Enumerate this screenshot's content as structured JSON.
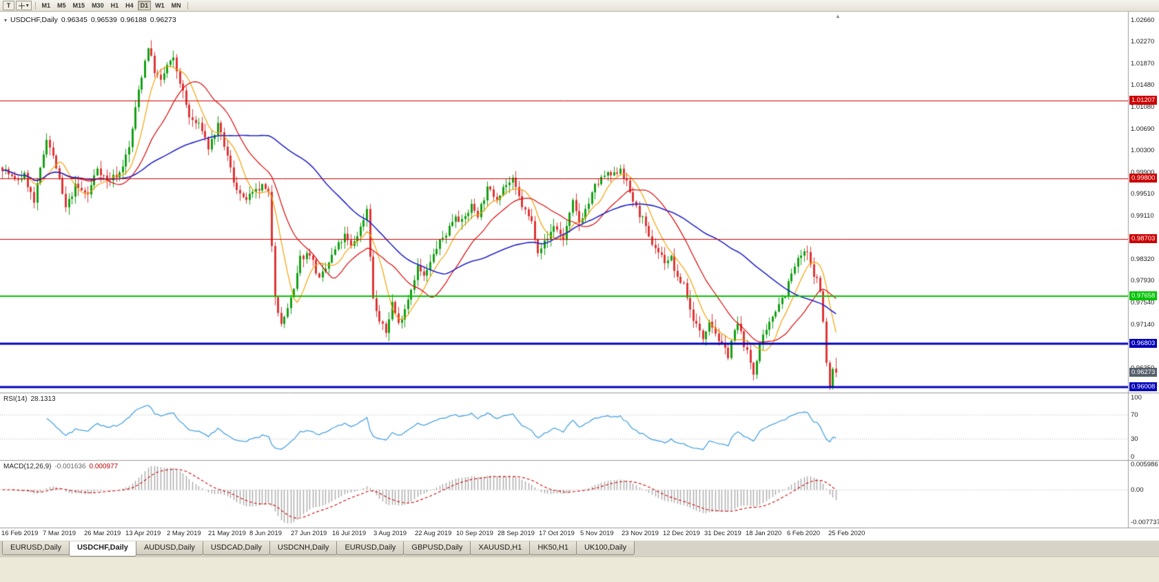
{
  "toolbar": {
    "text_tool": "T",
    "timeframes": [
      "M1",
      "M5",
      "M15",
      "M30",
      "H1",
      "H4",
      "D1",
      "W1",
      "MN"
    ],
    "active_timeframe": "D1"
  },
  "chart": {
    "title": {
      "symbol": "USDCHF,Daily",
      "open": "0.96345",
      "high": "0.96539",
      "low": "0.96188",
      "close": "0.96273"
    },
    "colors": {
      "background": "#ffffff",
      "up": "#12a112",
      "down": "#e03434",
      "axis_text": "#1c1c1c"
    },
    "price_axis": {
      "ticks": [
        "1.02660",
        "1.02270",
        "1.01870",
        "1.01480",
        "1.01080",
        "1.00690",
        "1.00300",
        "0.99900",
        "0.99510",
        "0.99110",
        "0.98720",
        "0.98320",
        "0.97930",
        "0.97540",
        "0.97140",
        "0.96750",
        "0.96350",
        "0.95960"
      ]
    },
    "current_price": {
      "value": 0.96273,
      "label": "0.96273",
      "color": "#56606c"
    }
  },
  "rsi": {
    "name": "RSI(14)",
    "value": "28.1313",
    "ticks": [
      "100",
      "70",
      "30",
      "0"
    ],
    "color": "#46a2e2",
    "level_values": [
      70,
      30
    ]
  },
  "macd": {
    "name": "MACD(12,26,9)",
    "value_main": "-0.001636",
    "value_signal": "0.000977",
    "ticks": [
      "0.005986",
      "0.00",
      "-0.007737"
    ],
    "hist_color": "#a8a8a8",
    "signal_color": "#d40000"
  },
  "date_axis": {
    "labels": [
      "16 Feb 2019",
      "7 Mar 2019",
      "26 Mar 2019",
      "13 Apr 2019",
      "2 May 2019",
      "21 May 2019",
      "8 Jun 2019",
      "27 Jun 2019",
      "16 Jul 2019",
      "3 Aug 2019",
      "22 Aug 2019",
      "10 Sep 2019",
      "28 Sep 2019",
      "17 Oct 2019",
      "5 Nov 2019",
      "23 Nov 2019",
      "12 Dec 2019",
      "31 Dec 2019",
      "18 Jan 2020",
      "6 Feb 2020",
      "25 Feb 2020"
    ]
  },
  "tabs": {
    "active_index": 1,
    "items": [
      "EURUSD,Daily",
      "USDCHF,Daily",
      "AUDUSD,Daily",
      "USDCAD,Daily",
      "USDCNH,Daily",
      "EURUSD,Daily",
      "GBPUSD,Daily",
      "XAUUSD,H1",
      "HK50,H1",
      "UK100,Daily"
    ]
  },
  "chart_data": {
    "type": "candlestick",
    "symbol": "USDCHF",
    "timeframe": "Daily",
    "candle_count": 264,
    "last_ohlc": {
      "open": 0.96345,
      "high": 0.96539,
      "low": 0.96188,
      "close": 0.96273
    },
    "price_range": [
      0.9596,
      1.0266
    ],
    "close_anchors": [
      [
        0,
        1.0
      ],
      [
        4,
        0.9975
      ],
      [
        7,
        0.9985
      ],
      [
        10,
        0.9935
      ],
      [
        14,
        1.0055
      ],
      [
        17,
        1.0
      ],
      [
        20,
        0.9925
      ],
      [
        23,
        0.9965
      ],
      [
        27,
        0.995
      ],
      [
        30,
        1.0
      ],
      [
        33,
        0.9975
      ],
      [
        37,
        0.999
      ],
      [
        40,
        1.0035
      ],
      [
        43,
        1.014
      ],
      [
        46,
        1.022
      ],
      [
        48,
        1.0175
      ],
      [
        50,
        1.0155
      ],
      [
        52,
        1.0185
      ],
      [
        54,
        1.0195
      ],
      [
        57,
        1.0135
      ],
      [
        59,
        1.009
      ],
      [
        63,
        1.007
      ],
      [
        65,
        1.0035
      ],
      [
        68,
        1.0075
      ],
      [
        70,
        1.004
      ],
      [
        73,
        0.9975
      ],
      [
        76,
        0.994
      ],
      [
        79,
        0.995
      ],
      [
        82,
        0.9965
      ],
      [
        84,
        0.995
      ],
      [
        86,
        0.977
      ],
      [
        88,
        0.9712
      ],
      [
        90,
        0.9745
      ],
      [
        92,
        0.9775
      ],
      [
        94,
        0.9835
      ],
      [
        97,
        0.9845
      ],
      [
        100,
        0.9795
      ],
      [
        102,
        0.9815
      ],
      [
        105,
        0.985
      ],
      [
        108,
        0.9875
      ],
      [
        110,
        0.9855
      ],
      [
        113,
        0.989
      ],
      [
        115,
        0.9925
      ],
      [
        117,
        0.976
      ],
      [
        119,
        0.972
      ],
      [
        121,
        0.97
      ],
      [
        123,
        0.9755
      ],
      [
        125,
        0.9715
      ],
      [
        127,
        0.9745
      ],
      [
        129,
        0.978
      ],
      [
        131,
        0.982
      ],
      [
        133,
        0.98
      ],
      [
        135,
        0.9825
      ],
      [
        137,
        0.9855
      ],
      [
        140,
        0.988
      ],
      [
        143,
        0.9915
      ],
      [
        145,
        0.99
      ],
      [
        148,
        0.993
      ],
      [
        150,
        0.9915
      ],
      [
        153,
        0.996
      ],
      [
        156,
        0.9945
      ],
      [
        158,
        0.9965
      ],
      [
        161,
        0.9975
      ],
      [
        164,
        0.993
      ],
      [
        167,
        0.99
      ],
      [
        169,
        0.985
      ],
      [
        172,
        0.987
      ],
      [
        174,
        0.9895
      ],
      [
        177,
        0.987
      ],
      [
        180,
        0.9935
      ],
      [
        182,
        0.99
      ],
      [
        185,
        0.9935
      ],
      [
        187,
        0.9965
      ],
      [
        190,
        0.9985
      ],
      [
        193,
        0.9985
      ],
      [
        195,
        1.0
      ],
      [
        197,
        0.997
      ],
      [
        200,
        0.9925
      ],
      [
        202,
        0.9905
      ],
      [
        204,
        0.987
      ],
      [
        206,
        0.9855
      ],
      [
        209,
        0.983
      ],
      [
        211,
        0.9835
      ],
      [
        213,
        0.9795
      ],
      [
        215,
        0.979
      ],
      [
        217,
        0.974
      ],
      [
        220,
        0.97
      ],
      [
        221,
        0.969
      ],
      [
        223,
        0.9725
      ],
      [
        225,
        0.97
      ],
      [
        227,
        0.9675
      ],
      [
        229,
        0.966
      ],
      [
        230,
        0.9685
      ],
      [
        232,
        0.9715
      ],
      [
        234,
        0.968
      ],
      [
        236,
        0.9645
      ],
      [
        237,
        0.9625
      ],
      [
        239,
        0.968
      ],
      [
        241,
        0.97
      ],
      [
        243,
        0.973
      ],
      [
        245,
        0.9755
      ],
      [
        247,
        0.977
      ],
      [
        248,
        0.979
      ],
      [
        250,
        0.982
      ],
      [
        252,
        0.984
      ],
      [
        254,
        0.9845
      ],
      [
        255,
        0.982
      ],
      [
        257,
        0.9795
      ],
      [
        258,
        0.9775
      ],
      [
        259,
        0.972
      ],
      [
        260,
        0.9645
      ],
      [
        261,
        0.9601
      ],
      [
        262,
        0.9634
      ],
      [
        263,
        0.96273
      ]
    ],
    "horizontal_levels": [
      {
        "value": 1.01207,
        "label": "1.01207",
        "color": "#cc0000",
        "width": 1
      },
      {
        "value": 0.998,
        "label": "0.99800",
        "color": "#cc0000",
        "width": 1
      },
      {
        "value": 0.98703,
        "label": "0.98703",
        "color": "#cc0000",
        "width": 1
      },
      {
        "value": 0.97658,
        "label": "0.97658",
        "color": "#00c400",
        "width": 2
      },
      {
        "value": 0.96803,
        "label": "0.96803",
        "color": "#0202b8",
        "width": 3
      },
      {
        "value": 0.96008,
        "label": "0.96008",
        "color": "#0202b8",
        "width": 3
      }
    ],
    "indicators": {
      "rsi": {
        "period": 14,
        "current": 28.1313,
        "levels": [
          70,
          30
        ]
      },
      "macd": {
        "fast": 12,
        "slow": 26,
        "signal": 9,
        "current_main": -0.001636,
        "current_signal": 0.000977
      },
      "moving_averages": [
        {
          "period": 8,
          "color": "#f7a000"
        },
        {
          "period": 20,
          "color": "#e00000"
        },
        {
          "period": 55,
          "color": "#2222cc"
        }
      ]
    }
  }
}
